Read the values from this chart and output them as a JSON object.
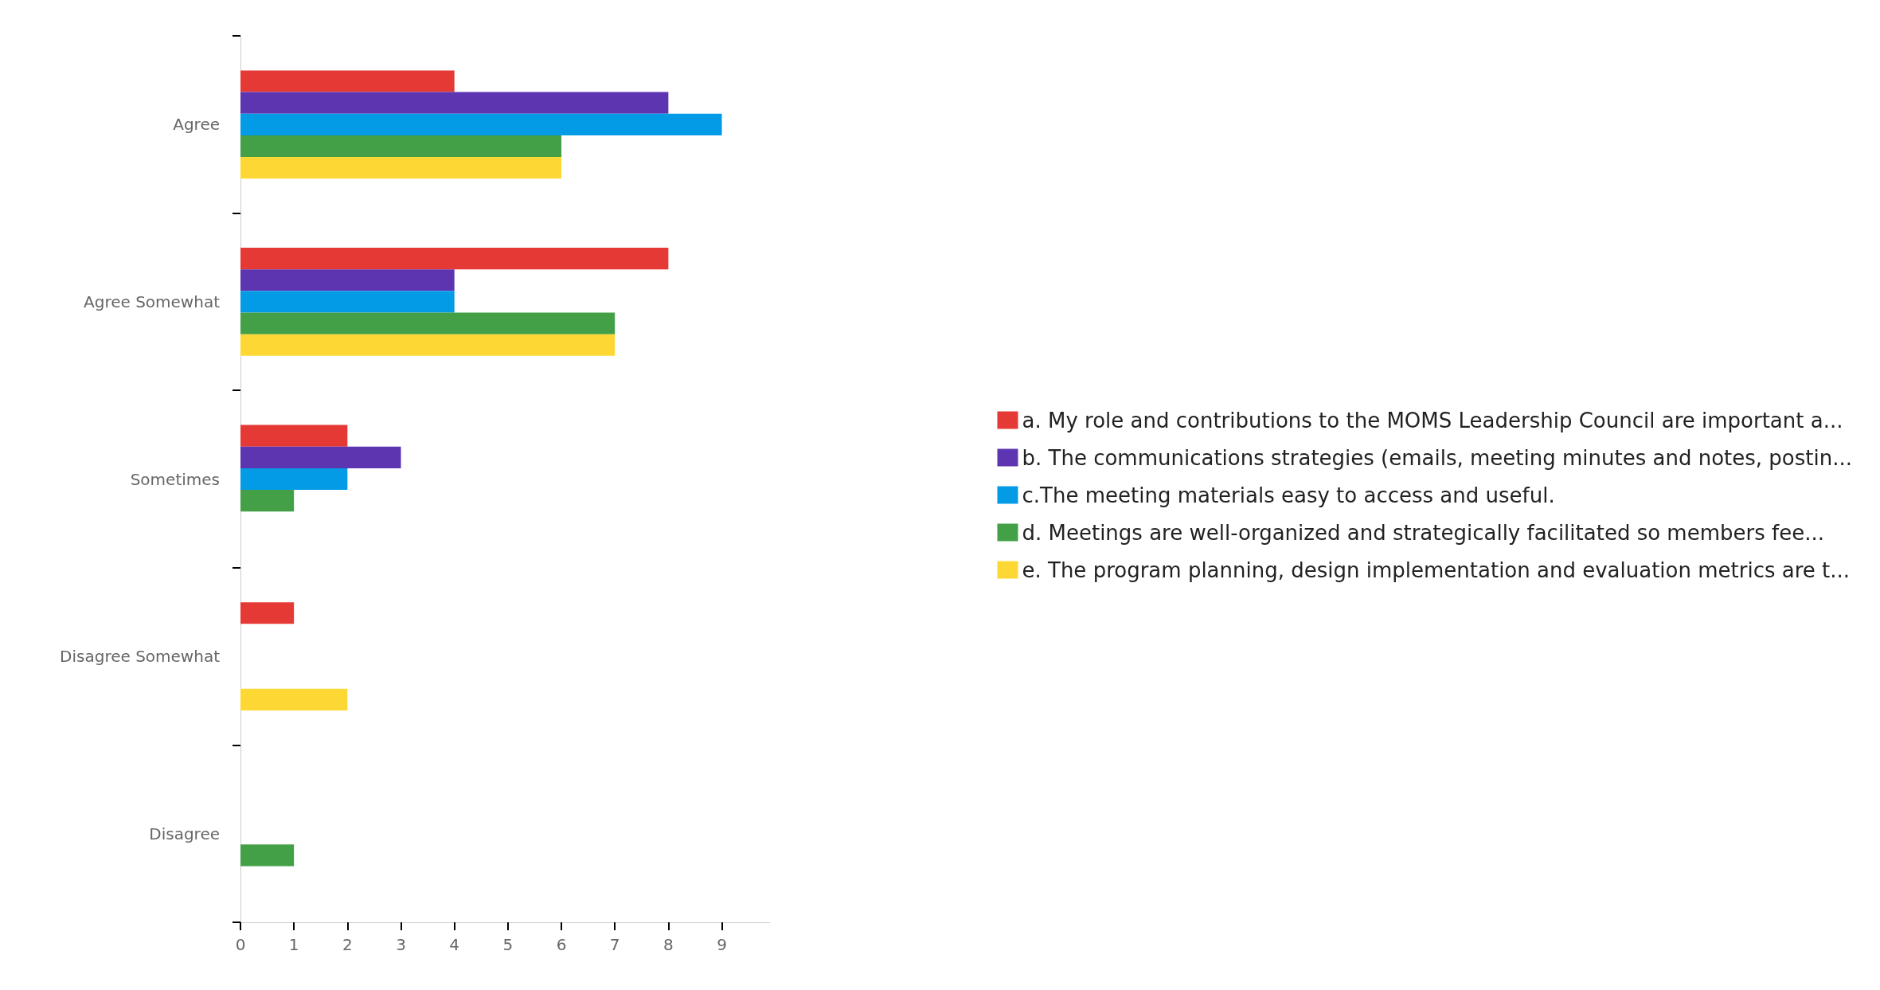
{
  "chart_data": {
    "type": "bar",
    "orientation": "horizontal",
    "categories": [
      "Agree",
      "Agree Somewhat",
      "Sometimes",
      "Disagree Somewhat",
      "Disagree"
    ],
    "series": [
      {
        "name": "a. My role and contributions to the MOMS Leadership Council are important a...",
        "color": "#e53935",
        "values": [
          4,
          8,
          2,
          1,
          null
        ]
      },
      {
        "name": "b. The communications strategies (emails, meeting minutes and notes, postin...",
        "color": "#5e35b1",
        "values": [
          8,
          4,
          3,
          null,
          null
        ]
      },
      {
        "name": "c.The meeting materials easy to access and useful.",
        "color": "#039be5",
        "values": [
          9,
          4,
          2,
          null,
          null
        ]
      },
      {
        "name": "d. Meetings are well-organized and strategically facilitated so members fee...",
        "color": "#43a047",
        "values": [
          6,
          7,
          1,
          null,
          1
        ]
      },
      {
        "name": "e. The program planning, design implementation and evaluation metrics are t...",
        "color": "#fdd835",
        "values": [
          6,
          7,
          null,
          2,
          null
        ]
      }
    ],
    "xlim": [
      0,
      9.9
    ],
    "xticks": [
      0,
      1,
      2,
      3,
      4,
      5,
      6,
      7,
      8,
      9
    ],
    "grid": false,
    "legend": "right"
  }
}
